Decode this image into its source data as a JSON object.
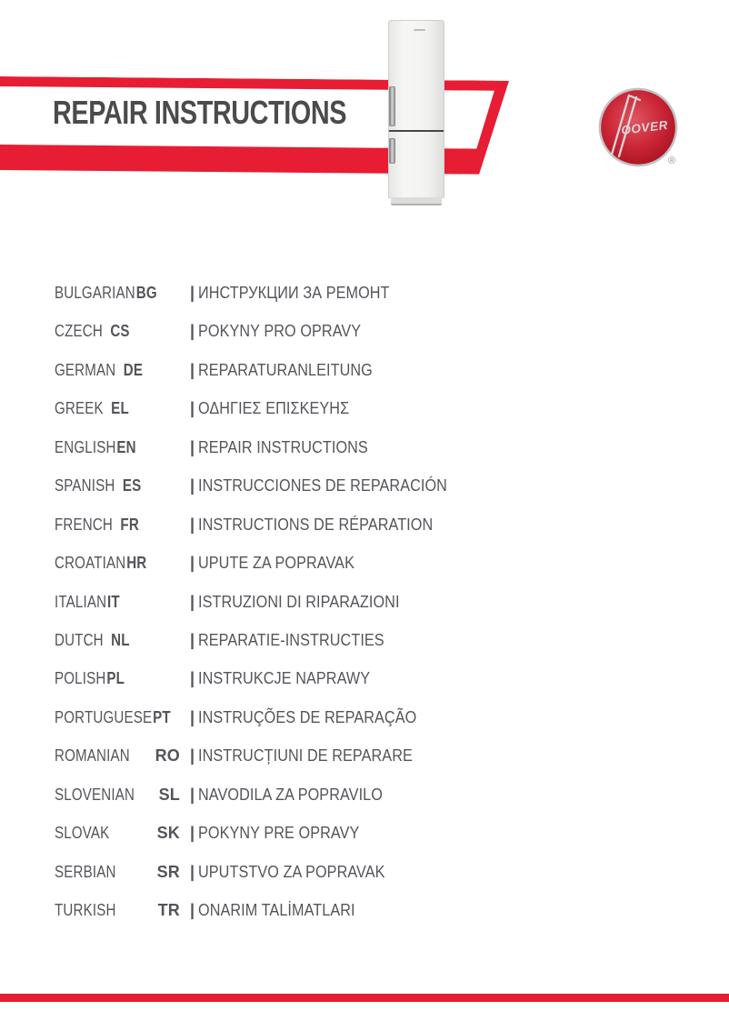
{
  "page": {
    "title": "REPAIR INSTRUCTIONS"
  },
  "colors": {
    "accent_red": "#E61D33",
    "title_gray": "#4A4B4D",
    "text_gray": "#54555A",
    "logo_red_center": "#D94352",
    "logo_red_edge": "#A8121F",
    "logo_silver": "#D6D6D6"
  },
  "logo": {
    "brand_text": "OOVER",
    "registered_mark": "®"
  },
  "separator": "|",
  "languages": [
    {
      "name": "BULGARIAN",
      "code": "BG",
      "title": "ИНСТРУКЦИИ ЗА РЕМОНТ",
      "code_pos": "attached"
    },
    {
      "name": "CZECH",
      "code": "CS",
      "title": "POKYNY PRO OPRAVY",
      "code_pos": "gap"
    },
    {
      "name": "GERMAN",
      "code": "DE",
      "title": "REPARATURANLEITUNG",
      "code_pos": "gap"
    },
    {
      "name": "GREEK",
      "code": "EL",
      "title": "ΟΔΗΓΙΕΣ ΕΠΙΣΚΕΥΗΣ",
      "code_pos": "gap"
    },
    {
      "name": "ENGLISH",
      "code": "EN",
      "title": "REPAIR INSTRUCTIONS",
      "code_pos": "attached"
    },
    {
      "name": "SPANISH",
      "code": "ES",
      "title": "INSTRUCCIONES DE REPARACIÓN",
      "code_pos": "gap"
    },
    {
      "name": "FRENCH",
      "code": "FR",
      "title": "INSTRUCTIONS DE RÉPARATION",
      "code_pos": "gap"
    },
    {
      "name": "CROATIAN",
      "code": "HR",
      "title": "UPUTE ZA POPRAVAK",
      "code_pos": "attached"
    },
    {
      "name": "ITALIAN",
      "code": "IT",
      "title": "ISTRUZIONI DI RIPARAZIONI",
      "code_pos": "attached"
    },
    {
      "name": "DUTCH",
      "code": "NL",
      "title": "REPARATIE-INSTRUCTIES",
      "code_pos": "gap"
    },
    {
      "name": "POLISH",
      "code": "PL",
      "title": "INSTRUKCJE NAPRAWY",
      "code_pos": "attached"
    },
    {
      "name": "PORTUGUESE",
      "code": "PT",
      "title": "INSTRUÇÕES DE REPARAÇÃO",
      "code_pos": "attached"
    },
    {
      "name": "ROMANIAN",
      "code": "RO",
      "title": "INSTRUCȚIUNI DE REPARARE",
      "code_pos": "right"
    },
    {
      "name": "SLOVENIAN",
      "code": "SL",
      "title": "NAVODILA ZA POPRAVILO",
      "code_pos": "right"
    },
    {
      "name": "SLOVAK",
      "code": "SK",
      "title": "POKYNY PRE OPRAVY",
      "code_pos": "right"
    },
    {
      "name": "SERBIAN",
      "code": "SR",
      "title": "UPUTSTVO ZA POPRAVAK",
      "code_pos": "right"
    },
    {
      "name": "TURKISH",
      "code": "TR",
      "title": "ONARIM TALİMATLARI",
      "code_pos": "right"
    }
  ]
}
